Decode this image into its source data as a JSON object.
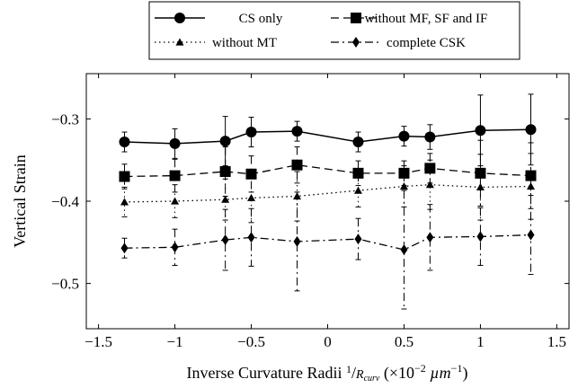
{
  "chart_data": {
    "type": "line",
    "title": "",
    "xlabel": "Inverse Curvature Radii ¹/R_curv (×10⁻² µm⁻¹)",
    "xlabel_main": "Inverse Curvature Radii ",
    "xlabel_num": "1",
    "xlabel_den": "R",
    "xlabel_den_sub": "curv",
    "xlabel_unit_open": " (×10",
    "xlabel_unit_exp1": "−2",
    "xlabel_unit_mid": " µm",
    "xlabel_unit_exp2": "−1",
    "xlabel_unit_close": ")",
    "ylabel": "Vertical Strain",
    "xlim": [
      -1.58,
      1.58
    ],
    "ylim": [
      -0.555,
      -0.245
    ],
    "xticks": [
      -1.5,
      -1,
      -0.5,
      0,
      0.5,
      1,
      1.5
    ],
    "xtick_labels": [
      "−1.5",
      "−1",
      "−0.5",
      "0",
      "0.5",
      "1",
      "1.5"
    ],
    "yticks": [
      -0.5,
      -0.4,
      -0.3
    ],
    "ytick_labels": [
      "−0.5",
      "−0.4",
      "−0.3"
    ],
    "grid": false,
    "legend_position": "top, outside plot area",
    "x": [
      -1.33,
      -1.0,
      -0.67,
      -0.5,
      -0.2,
      0.2,
      0.5,
      0.67,
      1.0,
      1.33
    ],
    "series": [
      {
        "name": "CS only",
        "style": "solid",
        "marker": "circle",
        "y": [
          -0.328,
          -0.33,
          -0.327,
          -0.316,
          -0.315,
          -0.328,
          -0.321,
          -0.322,
          -0.314,
          -0.313
        ],
        "err": [
          0.012,
          0.018,
          0.03,
          0.018,
          0.012,
          0.012,
          0.012,
          0.015,
          0.043,
          0.043
        ]
      },
      {
        "name": "without MF, SF and IF",
        "style": "dashed",
        "marker": "square",
        "y": [
          -0.37,
          -0.369,
          -0.364,
          -0.367,
          -0.356,
          -0.366,
          -0.366,
          -0.36,
          -0.366,
          -0.369
        ],
        "err": [
          0.015,
          0.02,
          0.03,
          0.022,
          0.022,
          0.015,
          0.015,
          0.018,
          0.04,
          0.04
        ]
      },
      {
        "name": "without MT",
        "style": "dotted",
        "marker": "triangle",
        "y": [
          -0.401,
          -0.4,
          -0.398,
          -0.396,
          -0.394,
          -0.387,
          -0.382,
          -0.38,
          -0.383,
          -0.382
        ],
        "err": [
          0.018,
          0.02,
          0.025,
          0.03,
          0.03,
          0.02,
          0.025,
          0.03,
          0.04,
          0.04
        ]
      },
      {
        "name": "complete CSK",
        "style": "dashdot",
        "marker": "diamond",
        "y": [
          -0.457,
          -0.456,
          -0.447,
          -0.444,
          -0.449,
          -0.446,
          -0.459,
          -0.444,
          -0.443,
          -0.441
        ],
        "err": [
          0.012,
          0.022,
          0.037,
          0.035,
          0.06,
          0.025,
          0.072,
          0.04,
          0.035,
          0.048
        ]
      }
    ]
  }
}
